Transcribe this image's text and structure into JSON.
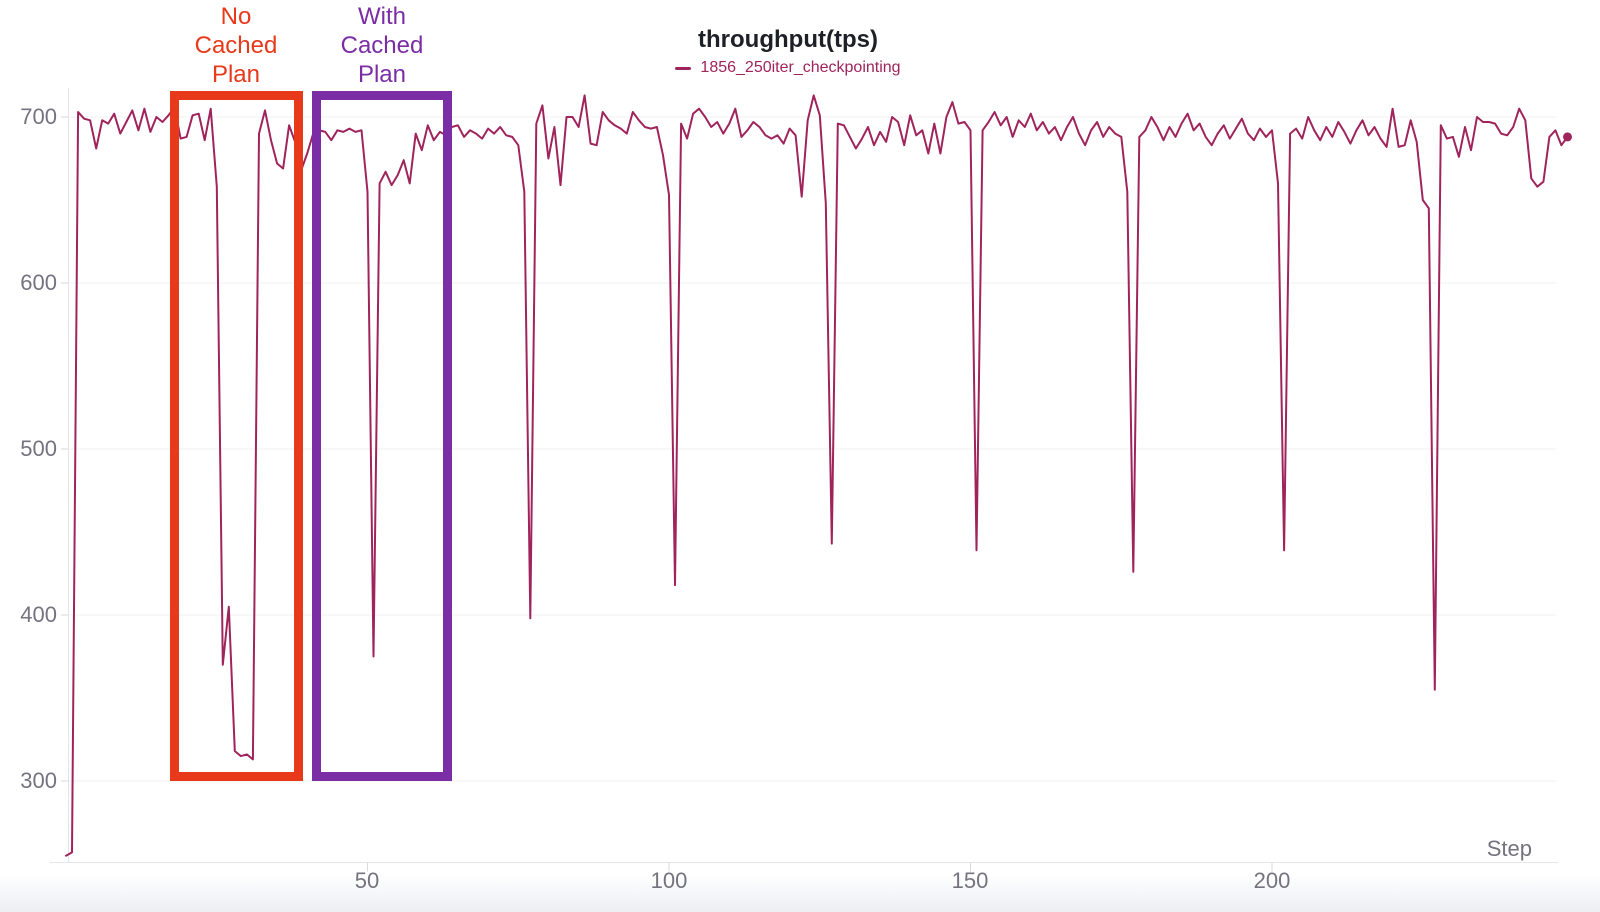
{
  "chart_data": {
    "type": "line",
    "title": "throughput(tps)",
    "grid": true,
    "legend_position": "top-center",
    "x_axis": {
      "label": "Step",
      "tick_values": [
        50,
        100,
        150,
        200
      ],
      "tick_labels": [
        "50",
        "100",
        "150",
        "200"
      ],
      "range": [
        0,
        249
      ]
    },
    "y_axis": {
      "tick_values": [
        700,
        600,
        500,
        400,
        300
      ],
      "tick_labels": [
        "700",
        "600",
        "500",
        "400",
        "300"
      ],
      "range": [
        250,
        717
      ]
    },
    "series": [
      {
        "name": "1856_250iter_checkpointing",
        "color": "#a0245c",
        "end_point_marker": true,
        "values": [
          255,
          257,
          703,
          699,
          698,
          681,
          698,
          696,
          702,
          690,
          697,
          704,
          692,
          705,
          691,
          700,
          697,
          701,
          706,
          687,
          688,
          701,
          702,
          686,
          705,
          658,
          370,
          405,
          318,
          315,
          316,
          313,
          690,
          704,
          686,
          672,
          669,
          695,
          685,
          668,
          678,
          690,
          692,
          691,
          686,
          692,
          691,
          693,
          691,
          692,
          655,
          375,
          660,
          667,
          659,
          665,
          674,
          660,
          690,
          680,
          695,
          686,
          691,
          689,
          694,
          695,
          688,
          692,
          690,
          687,
          693,
          690,
          694,
          689,
          688,
          683,
          655,
          398,
          696,
          707,
          675,
          694,
          659,
          700,
          700,
          694,
          713,
          684,
          683,
          703,
          698,
          695,
          693,
          690,
          703,
          698,
          694,
          693,
          694,
          677,
          653,
          418,
          696,
          687,
          702,
          705,
          700,
          694,
          697,
          690,
          696,
          705,
          688,
          692,
          697,
          694,
          689,
          687,
          689,
          684,
          693,
          689,
          652,
          698,
          713,
          701,
          648,
          443,
          696,
          695,
          688,
          681,
          687,
          694,
          683,
          691,
          685,
          700,
          697,
          683,
          701,
          689,
          692,
          678,
          696,
          678,
          700,
          709,
          696,
          697,
          692,
          439,
          692,
          697,
          703,
          695,
          700,
          688,
          698,
          694,
          702,
          692,
          697,
          690,
          694,
          686,
          694,
          700,
          690,
          683,
          692,
          697,
          688,
          694,
          690,
          688,
          655,
          426,
          688,
          692,
          700,
          694,
          686,
          694,
          688,
          696,
          702,
          692,
          696,
          688,
          683,
          690,
          695,
          687,
          693,
          699,
          690,
          686,
          693,
          688,
          692,
          660,
          439,
          690,
          693,
          687,
          700,
          692,
          686,
          694,
          688,
          697,
          691,
          684,
          692,
          698,
          689,
          694,
          687,
          682,
          705,
          682,
          683,
          698,
          685,
          650,
          645,
          355,
          695,
          687,
          688,
          676,
          694,
          680,
          700,
          697,
          697,
          696,
          690,
          689,
          694,
          705,
          698,
          663,
          658,
          661,
          688,
          692,
          683,
          688
        ]
      }
    ],
    "annotations": [
      {
        "label": "No Cached Plan",
        "label_lines": [
          "No",
          "Cached",
          "Plan"
        ],
        "color": "#e8391b",
        "step_range": [
          17,
          39
        ],
        "value_range": [
          300,
          716
        ]
      },
      {
        "label": "With Cached Plan",
        "label_lines": [
          "With",
          "Cached",
          "Plan"
        ],
        "color": "#7b2da5",
        "step_range": [
          41,
          64
        ],
        "value_range": [
          300,
          716
        ]
      }
    ],
    "colors": {
      "gridline": "#f0f0f3",
      "axis": "#e4e4e9",
      "tick": "#d9d9df",
      "tick_text": "#75737f",
      "title_text": "#1d2026"
    }
  }
}
